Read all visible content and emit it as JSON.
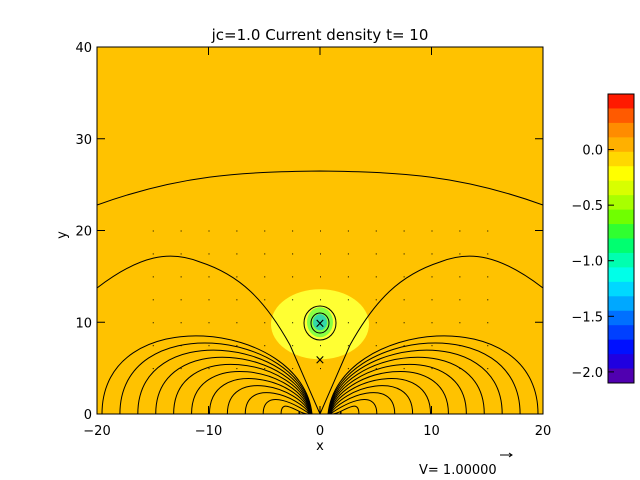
{
  "chart_data": {
    "type": "heatmap",
    "title": "jc=1.0 Current density t= 10",
    "xlabel": "x",
    "ylabel": "y",
    "xlim": [
      -20,
      20
    ],
    "ylim": [
      0,
      40
    ],
    "x_ticks": [
      -20,
      -10,
      0,
      10,
      20
    ],
    "x_tick_labels": [
      "−20",
      "−10",
      "0",
      "10",
      "20"
    ],
    "y_ticks": [
      0,
      10,
      20,
      30,
      40
    ],
    "y_tick_labels": [
      "0",
      "10",
      "20",
      "30",
      "40"
    ],
    "background_color": "#ffc200",
    "colorbar": {
      "range": [
        -2.1,
        0.5
      ],
      "tick_values": [
        0.0,
        -0.5,
        -1.0,
        -1.5,
        -2.0
      ],
      "tick_labels": [
        "0.0",
        "−0.5",
        "−1.0",
        "−1.5",
        "−2.0"
      ],
      "colors_top_to_bottom": [
        "#ff1a00",
        "#ff5a00",
        "#ff8c00",
        "#ffb000",
        "#ffd800",
        "#ffff00",
        "#d8ff00",
        "#a8ff00",
        "#70ff00",
        "#30ff30",
        "#00ff70",
        "#00ffb0",
        "#00ffe8",
        "#00d8ff",
        "#00a8ff",
        "#0070ff",
        "#0040ff",
        "#0010ff",
        "#2000e0",
        "#5000b0"
      ]
    },
    "current_region": {
      "center": [
        0,
        10
      ],
      "outer_level_color": "#ffff33",
      "inner_level_color": "#88ff44",
      "core_level_color": "#33d8a8"
    },
    "field_lines": "rising arcade loops centered at x=0 with top at y≈27 and a flux rope around (0,10)",
    "markers": [
      {
        "symbol": "×",
        "x": 0,
        "y": 10
      },
      {
        "symbol": "×",
        "x": 0,
        "y": 6
      }
    ],
    "velocity_label": "V= 1.00000"
  }
}
